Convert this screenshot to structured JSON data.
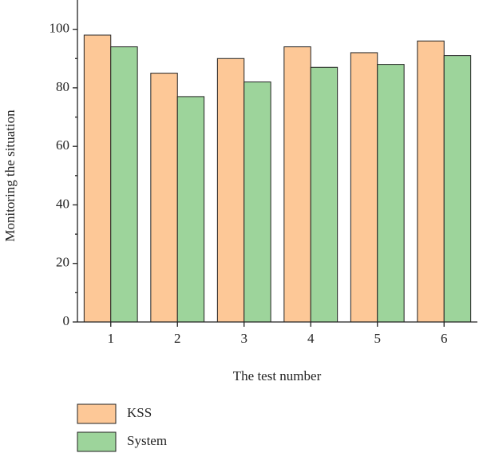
{
  "chart_data": {
    "type": "bar",
    "xlabel": "The test number",
    "ylabel": "Monitoring the situation",
    "categories": [
      "1",
      "2",
      "3",
      "4",
      "5",
      "6"
    ],
    "series": [
      {
        "name": "KSS",
        "color": "#fdc897",
        "values": [
          98,
          85,
          90,
          94,
          92,
          96
        ]
      },
      {
        "name": "System",
        "color": "#9dd49b",
        "values": [
          94,
          77,
          82,
          87,
          88,
          91
        ]
      }
    ],
    "ylim": [
      0,
      110
    ],
    "yticks": [
      0,
      20,
      40,
      60,
      80,
      100
    ],
    "legend": "bottom-left"
  }
}
